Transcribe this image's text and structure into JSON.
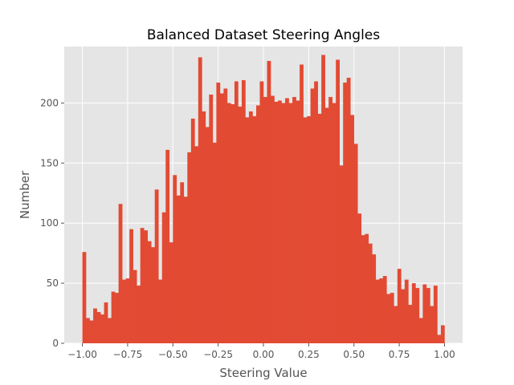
{
  "chart_data": {
    "type": "bar",
    "title": "Balanced Dataset Steering Angles",
    "xlabel": "Steering Value",
    "ylabel": "Number",
    "xlim": [
      -1.1,
      1.1
    ],
    "ylim": [
      0,
      247
    ],
    "xticks": [
      -1.0,
      -0.75,
      -0.5,
      -0.25,
      0.0,
      0.25,
      0.5,
      0.75,
      1.0
    ],
    "xtick_labels": [
      "−1.00",
      "−0.75",
      "−0.50",
      "−0.25",
      "0.00",
      "0.25",
      "0.50",
      "0.75",
      "1.00"
    ],
    "yticks": [
      0,
      50,
      100,
      150,
      200
    ],
    "ytick_labels": [
      "0",
      "50",
      "100",
      "150",
      "200"
    ],
    "grid": true,
    "bin_range": [
      -1.0,
      1.0
    ],
    "values": [
      76,
      21,
      19,
      29,
      26,
      24,
      34,
      21,
      43,
      42,
      116,
      53,
      54,
      95,
      61,
      48,
      96,
      94,
      85,
      80,
      128,
      53,
      109,
      161,
      84,
      140,
      123,
      134,
      122,
      159,
      187,
      164,
      238,
      193,
      180,
      207,
      167,
      217,
      208,
      212,
      200,
      199,
      218,
      197,
      219,
      188,
      193,
      189,
      198,
      218,
      205,
      235,
      206,
      201,
      202,
      200,
      204,
      200,
      205,
      202,
      232,
      188,
      189,
      212,
      218,
      191,
      240,
      196,
      205,
      200,
      236,
      148,
      217,
      221,
      190,
      166,
      108,
      90,
      91,
      83,
      74,
      53,
      54,
      56,
      41,
      42,
      31,
      62,
      45,
      53,
      32,
      50,
      46,
      21,
      49,
      46,
      31,
      48,
      7,
      15
    ]
  },
  "colors": {
    "bar": "#e24a33",
    "plot_bg": "#e5e5e5",
    "grid": "#ffffff",
    "tick": "#555555"
  }
}
